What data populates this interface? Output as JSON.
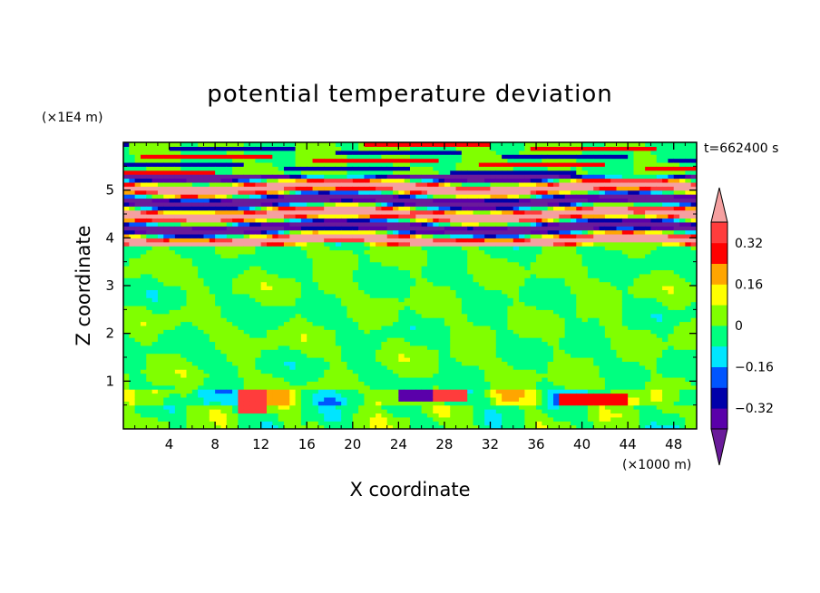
{
  "chart_data": {
    "type": "heatmap",
    "title": "potential temperature deviation",
    "xlabel": "X coordinate",
    "ylabel": "Z coordinate",
    "x_unit": "(×1000 m)",
    "y_unit": "(×1E4 m)",
    "time_label": "t=662400 s",
    "x_range": [
      0,
      50
    ],
    "y_range": [
      0,
      6
    ],
    "x_ticks": [
      4,
      8,
      12,
      16,
      20,
      24,
      28,
      32,
      36,
      40,
      44,
      48
    ],
    "y_ticks": [
      1,
      2,
      3,
      4,
      5
    ],
    "colorbar": {
      "levels": [
        -0.4,
        -0.32,
        -0.24,
        -0.16,
        -0.08,
        0,
        0.08,
        0.16,
        0.24,
        0.32,
        0.4
      ],
      "labels": [
        "0.32",
        "0.16",
        "0",
        "−0.16",
        "−0.32"
      ],
      "label_values": [
        0.32,
        0.16,
        0,
        -0.16,
        -0.32
      ],
      "colors": [
        "#6a1b9a",
        "#5a00aa",
        "#0000aa",
        "#0055ff",
        "#00e5ff",
        "#00ff80",
        "#80ff00",
        "#ffff00",
        "#ffa500",
        "#ff0000",
        "#ff3c3c",
        "#f5a0a0"
      ],
      "extend": "both"
    },
    "layers": [
      {
        "z": [
          0.0,
          0.8
        ],
        "pattern": "mixed-near-zero-with-warm-and-cold-patches"
      },
      {
        "z": [
          0.8,
          3.8
        ],
        "pattern": "mostly-near-zero-banded"
      },
      {
        "z": [
          3.8,
          5.3
        ],
        "pattern": "alternating-strong-warm-cold-bands"
      },
      {
        "z": [
          5.3,
          6.0
        ],
        "pattern": "mostly-near-zero-with-thin-bands"
      }
    ]
  }
}
